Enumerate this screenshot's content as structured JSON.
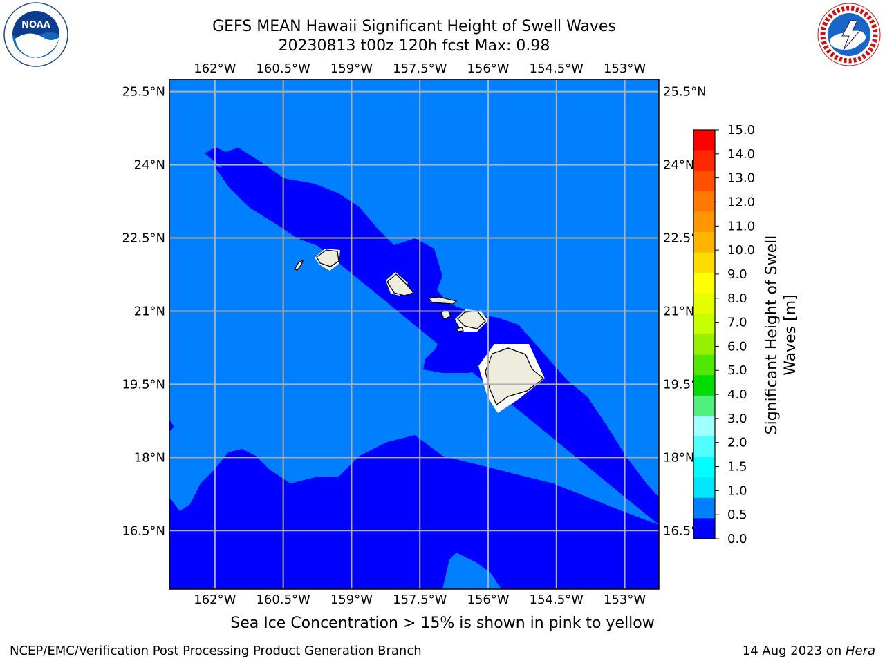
{
  "title": {
    "line1": "GEFS MEAN Hawaii Significant Height of Swell Waves",
    "line2": "20230813 t00z 120h fcst   Max: 0.98"
  },
  "map": {
    "lon_labels": [
      "162°W",
      "160.5°W",
      "159°W",
      "157.5°W",
      "156°W",
      "154.5°W",
      "153°W"
    ],
    "lat_labels": [
      "25.5°N",
      "24°N",
      "22.5°N",
      "21°N",
      "19.5°N",
      "18°N",
      "16.5°N"
    ],
    "extent": {
      "lon_min": -163.0,
      "lon_max": -152.25,
      "lat_min": 15.3,
      "lat_max": 25.75
    },
    "colors": {
      "deep_swell_0_0.5": "#0000ff",
      "swell_0.5_1.0": "#0080ff",
      "land": "#eeecdc",
      "grid": "#b0b0b0"
    }
  },
  "colorbar": {
    "label_line1": "Significant Height of Swell",
    "label_line2": "Waves [m]",
    "ticks": [
      "15.0",
      "14.0",
      "13.0",
      "12.0",
      "11.0",
      "10.0",
      "9.0",
      "8.0",
      "7.0",
      "6.0",
      "5.0",
      "4.0",
      "3.0",
      "2.0",
      "1.5",
      "1.0",
      "0.5",
      "0.0"
    ],
    "bands": [
      "#ff0000",
      "#ff2800",
      "#ff5000",
      "#ff7800",
      "#ff9600",
      "#ffb400",
      "#ffdc00",
      "#ffff00",
      "#e6ff00",
      "#c8ff00",
      "#96f000",
      "#50e600",
      "#00dc00",
      "#50f080",
      "#a0ffff",
      "#50ffff",
      "#00ffff",
      "#00e6ff",
      "#0080ff",
      "#0000ff"
    ]
  },
  "caption": "Sea Ice Concentration > 15% is shown in pink to yellow",
  "footer": {
    "left": "NCEP/EMC/Verification Post Processing Product Generation Branch",
    "right_date": "14 Aug 2023 on ",
    "right_host": "Hera"
  }
}
